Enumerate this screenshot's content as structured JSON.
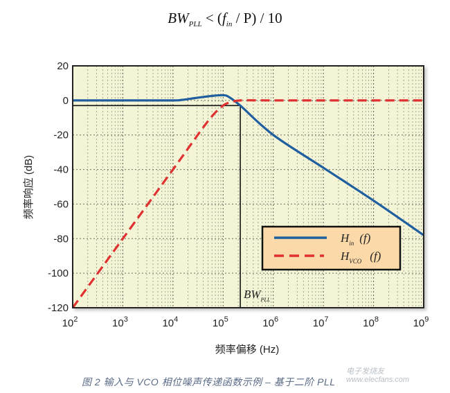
{
  "formula": {
    "lhs": "BW",
    "lhs_sub": "PLL",
    "op": " < (",
    "f": "f",
    "f_sub": "in",
    "rest": " / P) / 10"
  },
  "chart_data": {
    "type": "line",
    "title": "",
    "xlabel": "频率偏移 (Hz)",
    "ylabel": "频率响应 (dB)",
    "xscale": "log",
    "xlim": [
      100,
      1000000000
    ],
    "ylim": [
      -120,
      20
    ],
    "xticks": [
      "10^2",
      "10^3",
      "10^4",
      "10^5",
      "10^6",
      "10^7",
      "10^8",
      "10^9"
    ],
    "yticks": [
      20,
      0,
      -20,
      -40,
      -60,
      -80,
      -100,
      -120
    ],
    "grid": true,
    "background": "#f4f5d6",
    "legend_position": "lower right",
    "series": [
      {
        "name": "H_in (f)",
        "color": "#1f5fa0",
        "style": "solid",
        "x": [
          100,
          1000,
          10000,
          15000,
          30000,
          60000,
          100000,
          130000,
          220000,
          1000000,
          10000000,
          100000000,
          1000000000
        ],
        "y": [
          0,
          0,
          0,
          0.3,
          1.5,
          2.6,
          3,
          2,
          -3,
          -20,
          -39,
          -58,
          -78
        ]
      },
      {
        "name": "H_VCO (f)",
        "color": "#e03030",
        "style": "dashed",
        "x": [
          100,
          1000,
          10000,
          50000,
          100000,
          150000,
          220000,
          1000000,
          10000000,
          100000000,
          1000000000
        ],
        "y": [
          -120,
          -80,
          -40,
          -12,
          -3,
          -1,
          0,
          0,
          0,
          0,
          0
        ]
      }
    ],
    "annotations": [
      {
        "text": "BW_PLL",
        "x": 220000,
        "type": "vertical-line"
      },
      {
        "text": "-3 dB reference",
        "y": -3,
        "type": "horizontal-line"
      }
    ]
  },
  "axes": {
    "xlabel": "频率偏移 (Hz)",
    "ylabel": "频率响应 (dB)",
    "yticks": [
      "20",
      "0",
      "-20",
      "-40",
      "-60",
      "-80",
      "-100",
      "-120"
    ],
    "xticks_base": [
      "10",
      "10",
      "10",
      "10",
      "10",
      "10",
      "10",
      "10"
    ],
    "xticks_exp": [
      "2",
      "3",
      "4",
      "5",
      "6",
      "7",
      "8",
      "9"
    ]
  },
  "legend": {
    "h_in": "H",
    "h_in_sub": "in",
    "h_in_arg": "(f)",
    "h_vco": "H",
    "h_vco_sub": "VCO",
    "h_vco_arg": "(f)"
  },
  "bw_label": {
    "main": "BW",
    "sub": "PLL"
  },
  "caption": "图 2   输入与 VCO 相位噪声传递函数示例 – 基于二阶 PLL",
  "watermark": {
    "line1": "电子发烧友",
    "line2": "www.elecfans.com"
  }
}
